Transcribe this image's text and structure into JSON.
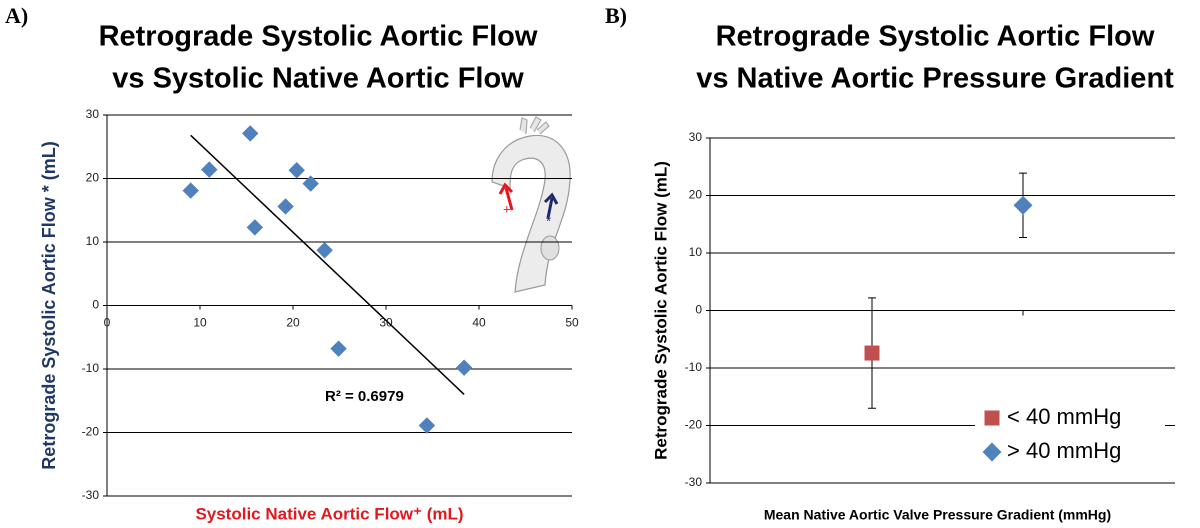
{
  "chart_data": [
    {
      "type": "scatter",
      "panel": "A)",
      "title": [
        "Retrograde Systolic Aortic Flow",
        "vs Systolic Native Aortic Flow"
      ],
      "x_label": "Systolic Native Aortic Flow⁺ (mL)",
      "y_label": "Retrograde  Systolic Aortic Flow * (mL)",
      "xlim": [
        0,
        50
      ],
      "xticks": [
        0,
        10,
        20,
        30,
        40,
        50
      ],
      "ylim": [
        -30,
        30
      ],
      "yticks": [
        -30,
        -20,
        -10,
        0,
        10,
        20,
        30
      ],
      "grid": true,
      "series": [
        {
          "color": "#4f81bd",
          "marker": "diamond",
          "x": [
            9.0,
            11.0,
            15.4,
            15.9,
            19.2,
            20.4,
            21.9,
            23.4,
            24.9,
            34.4,
            38.4
          ],
          "values": [
            18.1,
            21.4,
            27.1,
            12.3,
            15.6,
            21.3,
            19.2,
            8.7,
            -6.8,
            -18.9,
            -9.8
          ]
        }
      ],
      "trendline": {
        "x": [
          9.0,
          38.4
        ],
        "values": [
          26.8,
          -14.0
        ],
        "label": "R² = 0.6979"
      },
      "inset_labels": [
        "+",
        "*"
      ]
    },
    {
      "type": "point",
      "panel": "B)",
      "title": [
        "Retrograde Systolic Aortic Flow",
        "vs Native Aortic Pressure Gradient"
      ],
      "x_label": "Mean Native Aortic Valve Pressure Gradient (mmHg)",
      "y_label": "Retrograde Systolic Aortic Flow (mL)",
      "ylim": [
        -30,
        30
      ],
      "yticks": [
        -30,
        -20,
        -10,
        0,
        10,
        20,
        30
      ],
      "grid": true,
      "categories": [
        null,
        null
      ],
      "legend": "bottom-right",
      "series": [
        {
          "name": "< 40 mmHg",
          "color": "#c0504d",
          "marker": "square",
          "values": [
            -7.4,
            null
          ],
          "errors": [
            9.6,
            null
          ]
        },
        {
          "name": "> 40 mmHg",
          "color": "#4f81bd",
          "marker": "diamond",
          "values": [
            null,
            18.3
          ],
          "errors": [
            null,
            5.6
          ]
        }
      ]
    }
  ]
}
